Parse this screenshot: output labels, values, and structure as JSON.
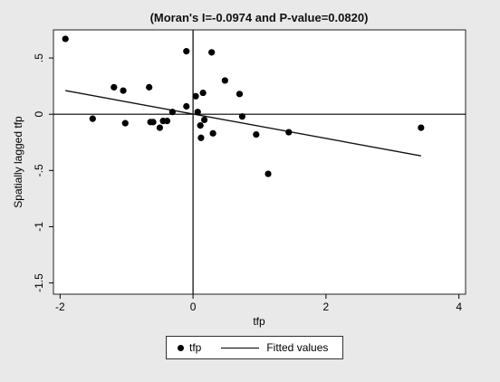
{
  "chart_data": {
    "type": "scatter",
    "title": "(Moran's I=-0.0974 and P-value=0.0820)",
    "xlabel": "tfp",
    "ylabel": "Spatially lagged tfp",
    "xlim": [
      -2.1,
      4.1
    ],
    "ylim": [
      -1.6,
      0.75
    ],
    "x_ticks": [
      -2,
      0,
      2,
      4
    ],
    "y_ticks": [
      -1.5,
      -1,
      -0.5,
      0,
      0.5
    ],
    "x_tick_labels": [
      "-2",
      "0",
      "2",
      "4"
    ],
    "y_tick_labels": [
      "-1.5",
      "-1",
      "-.5",
      "0",
      ".5"
    ],
    "grid": true,
    "legend_position": "bottom",
    "series": [
      {
        "name": "tfp",
        "kind": "scatter",
        "x": [
          -1.92,
          -1.51,
          -1.19,
          -1.05,
          -1.02,
          -0.66,
          -0.64,
          -0.6,
          -0.5,
          -0.45,
          -0.39,
          -0.31,
          -0.1,
          -0.1,
          0.04,
          0.07,
          0.11,
          0.12,
          0.15,
          0.17,
          0.28,
          0.3,
          0.48,
          0.7,
          0.74,
          0.95,
          1.13,
          1.44,
          3.43
        ],
        "y": [
          0.67,
          -0.04,
          0.24,
          0.21,
          -0.08,
          0.24,
          -0.07,
          -0.07,
          -0.12,
          -0.06,
          -0.06,
          0.02,
          0.56,
          0.07,
          0.16,
          0.02,
          -0.1,
          -0.21,
          0.19,
          -0.05,
          0.55,
          -0.17,
          0.3,
          0.18,
          -0.02,
          -0.18,
          -0.53,
          -0.16,
          -0.12
        ]
      },
      {
        "name": "Fitted values",
        "kind": "line",
        "x": [
          -1.92,
          3.43
        ],
        "y": [
          0.21,
          -0.37
        ]
      }
    ]
  },
  "legend": {
    "marker_label": "tfp",
    "line_label": "Fitted values"
  }
}
